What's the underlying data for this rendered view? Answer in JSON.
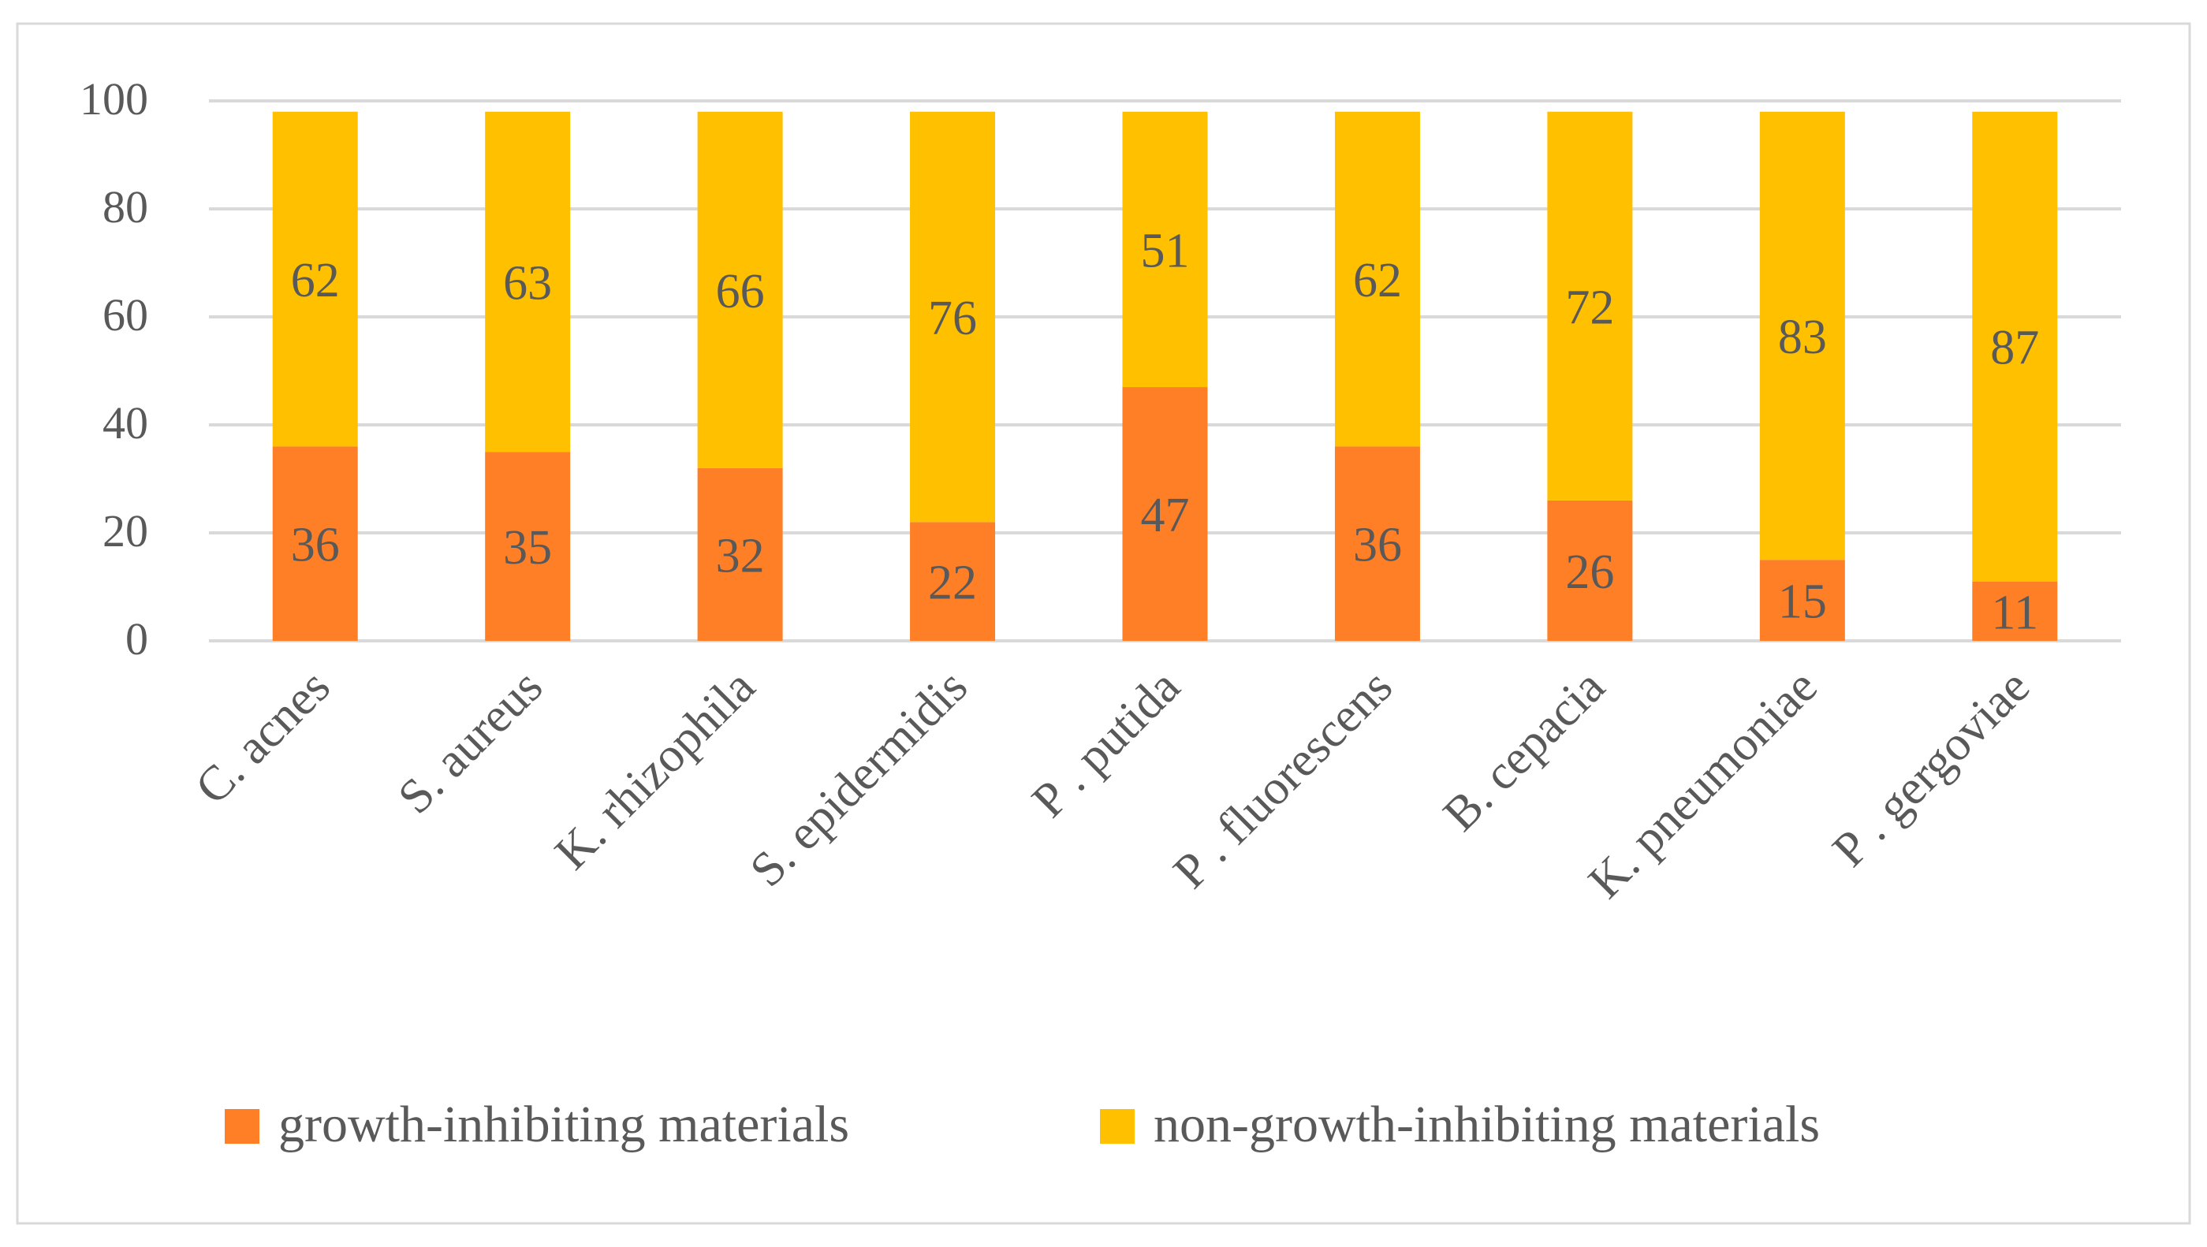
{
  "chart_data": {
    "type": "stacked-bar",
    "categories": [
      "C. acnes",
      "S. aureus",
      "K. rhizophila",
      "S. epidermidis",
      "P. putida",
      "P. fluorescens",
      "B. cepacia",
      "K. pneumoniae",
      "P. gergoviae"
    ],
    "category_labels": [
      "C. acnes",
      "S. aureus",
      "K. rhizophila",
      "S. epidermidis",
      "P . putida",
      "P . fluorescens",
      "B. cepacia",
      "K. pneumoniae",
      "P . gergoviae"
    ],
    "series": [
      {
        "name": "growth-inhibiting materials",
        "color": "#FF7F27",
        "values": [
          36,
          35,
          32,
          22,
          47,
          36,
          26,
          15,
          11
        ]
      },
      {
        "name": "non-growth-inhibiting materials",
        "color": "#FFC000",
        "values": [
          62,
          63,
          66,
          76,
          51,
          62,
          72,
          83,
          87
        ]
      }
    ],
    "ylim": [
      0,
      100
    ],
    "yticks": [
      0,
      20,
      40,
      60,
      80,
      100
    ],
    "title": "",
    "xlabel": "",
    "ylabel": "",
    "grid": true,
    "legend_position": "bottom"
  },
  "style": {
    "grid_color": "#D9D9D9",
    "text_color": "#595959",
    "border_color": "#D9D9D9"
  }
}
